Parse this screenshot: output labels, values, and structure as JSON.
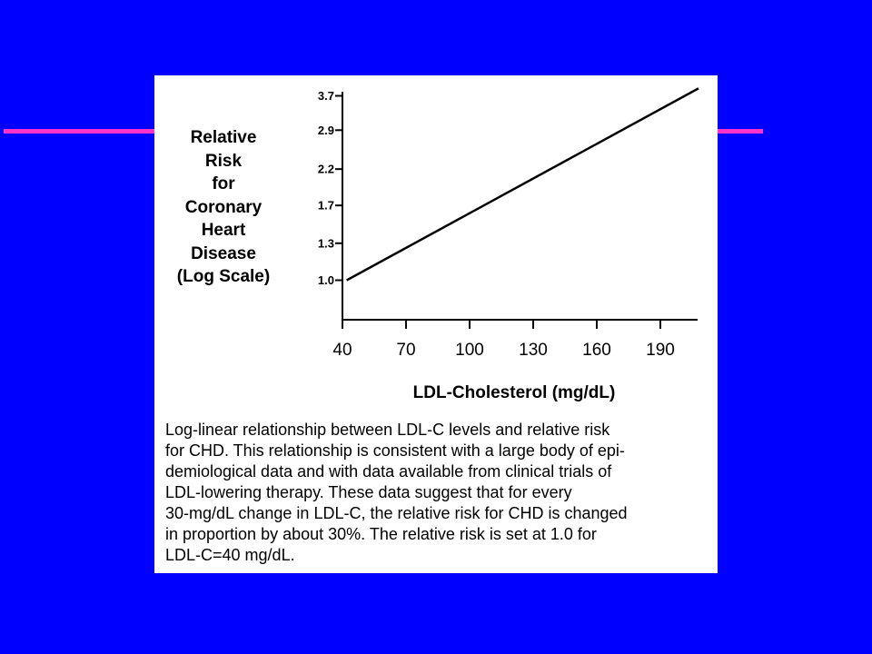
{
  "slide": {
    "background_color": "#0000ff",
    "accent_color": "#ff33cc"
  },
  "chart_data": {
    "type": "line",
    "title": "",
    "xlabel": "LDL-Cholesterol (mg/dL)",
    "ylabel": "Relative\nRisk\nfor\nCoronary\nHeart\nDisease\n(Log Scale)",
    "x_ticks": [
      40,
      70,
      100,
      130,
      160,
      190
    ],
    "y_ticks": [
      "1.0",
      "1.3",
      "1.7",
      "2.2",
      "2.9",
      "3.7"
    ],
    "y_scale": "log",
    "xlim": [
      40,
      210
    ],
    "series": [
      {
        "x": [
          42,
          208
        ],
        "y": [
          1.0,
          3.9
        ]
      }
    ],
    "grid": false
  },
  "caption": "Log-linear relationship between LDL-C levels and relative risk\nfor CHD. This relationship is consistent with a large body of epi-\ndemiological data and with data available from clinical trials of\nLDL-lowering therapy. These data suggest that for every\n30-mg/dL change in LDL-C, the relative risk for CHD is changed\nin proportion by about 30%. The relative risk is set at 1.0 for\nLDL-C=40 mg/dL."
}
